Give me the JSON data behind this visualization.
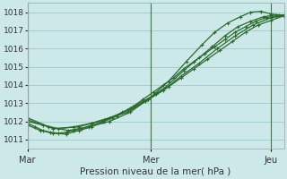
{
  "title": "",
  "xlabel": "Pression niveau de la mer( hPa )",
  "bg_color": "#cce8e8",
  "grid_color": "#99cccc",
  "line_color": "#2d6a2d",
  "xtick_labels": [
    "Mar",
    "Mer",
    "Jeu"
  ],
  "ylim": [
    1010.5,
    1018.5
  ],
  "yticks": [
    1011,
    1012,
    1013,
    1014,
    1015,
    1016,
    1017,
    1018
  ],
  "line1_x": [
    0.0,
    0.03,
    0.06,
    0.09,
    0.12,
    0.15,
    0.18,
    0.21,
    0.25,
    0.29,
    0.33,
    0.37,
    0.41,
    0.45,
    0.49,
    0.53,
    0.57,
    0.61,
    0.65,
    0.69,
    0.73,
    0.77,
    0.81,
    0.85,
    0.89,
    0.93,
    0.97,
    1.0
  ],
  "line1_y": [
    1011.9,
    1011.7,
    1011.5,
    1011.4,
    1011.35,
    1011.4,
    1011.5,
    1011.6,
    1011.8,
    1012.0,
    1012.2,
    1012.5,
    1012.8,
    1013.2,
    1013.6,
    1014.0,
    1014.4,
    1014.9,
    1015.3,
    1015.7,
    1016.1,
    1016.5,
    1016.9,
    1017.2,
    1017.5,
    1017.7,
    1017.8,
    1017.8
  ],
  "line2_x": [
    0.0,
    0.05,
    0.1,
    0.15,
    0.2,
    0.25,
    0.3,
    0.35,
    0.4,
    0.45,
    0.5,
    0.55,
    0.6,
    0.65,
    0.7,
    0.75,
    0.8,
    0.85,
    0.9,
    0.95,
    1.0
  ],
  "line2_y": [
    1011.8,
    1011.5,
    1011.35,
    1011.3,
    1011.5,
    1011.7,
    1012.0,
    1012.3,
    1012.7,
    1013.1,
    1013.5,
    1013.9,
    1014.4,
    1014.9,
    1015.4,
    1015.9,
    1016.4,
    1016.9,
    1017.3,
    1017.55,
    1017.8
  ],
  "line3_x": [
    0.0,
    0.06,
    0.12,
    0.18,
    0.25,
    0.32,
    0.39,
    0.46,
    0.53,
    0.6,
    0.67,
    0.74,
    0.81,
    0.88,
    0.95,
    1.0
  ],
  "line3_y": [
    1012.0,
    1011.8,
    1011.6,
    1011.7,
    1011.9,
    1012.2,
    1012.6,
    1013.1,
    1013.7,
    1014.5,
    1015.2,
    1016.0,
    1016.7,
    1017.3,
    1017.7,
    1017.8
  ],
  "line4_x": [
    0.0,
    0.08,
    0.16,
    0.24,
    0.32,
    0.4,
    0.47,
    0.54,
    0.61,
    0.67,
    0.72,
    0.77,
    0.82,
    0.87,
    0.92,
    0.97,
    1.0
  ],
  "line4_y": [
    1012.1,
    1011.7,
    1011.5,
    1011.7,
    1012.0,
    1012.5,
    1013.2,
    1013.9,
    1014.8,
    1015.5,
    1016.1,
    1016.7,
    1017.2,
    1017.5,
    1017.75,
    1017.85,
    1017.85
  ],
  "line5_x": [
    0.0,
    0.1,
    0.2,
    0.3,
    0.39,
    0.47,
    0.55,
    0.62,
    0.68,
    0.73,
    0.78,
    0.83,
    0.87,
    0.91,
    0.95,
    0.98,
    1.0
  ],
  "line5_y": [
    1012.2,
    1011.6,
    1011.7,
    1012.1,
    1012.5,
    1013.2,
    1014.2,
    1015.3,
    1016.2,
    1016.9,
    1017.4,
    1017.75,
    1018.0,
    1018.05,
    1017.9,
    1017.85,
    1017.8
  ],
  "xtick_x": [
    0.0,
    0.48,
    0.95
  ]
}
